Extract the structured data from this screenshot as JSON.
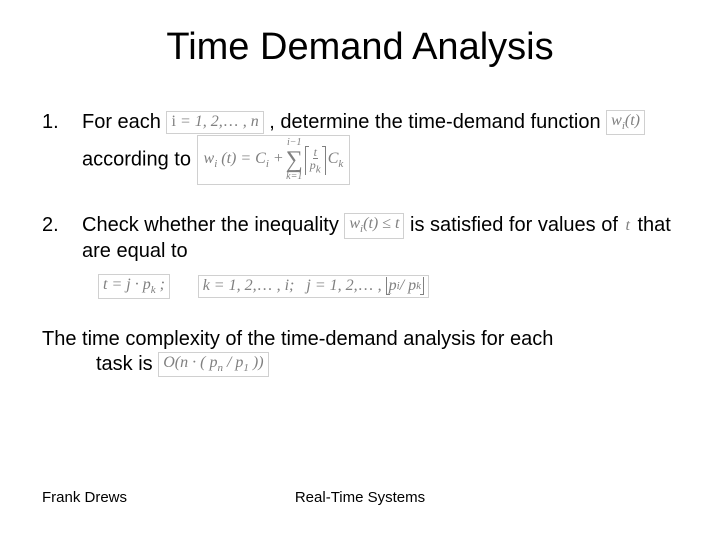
{
  "title": "Time Demand Analysis",
  "items": [
    {
      "num": "1.",
      "pre": "For each ",
      "range_tex": "i = 1, 2, … , n",
      "mid1": " , determine the time-demand function ",
      "fn_tex": "w_i(t)",
      "mid2": " according to ",
      "formula": {
        "lhs": "w_i (t) = C_i +",
        "sum_upper": "i−1",
        "sum_lower": "k=1",
        "ceil_top": "t",
        "ceil_bot": "p_k",
        "tail": "C_k"
      }
    },
    {
      "num": "2.",
      "pre": "Check whether the inequality ",
      "ineq_tex": "w_i(t) ≤ t",
      "mid1": " is satisfied for values of ",
      "tvar": "t",
      "mid2": " that are equal to",
      "eq": {
        "t_def": "t = j · p_k ;",
        "k_range": "k = 1, 2, … , i;",
        "j_range": "j = 1, 2, … ,",
        "floor": "p_i / p_k"
      }
    }
  ],
  "conclusion": {
    "line1": "The time complexity of the time-demand analysis for each",
    "line2_pre": "task is ",
    "bigO": "O(n · ( p_n / p_1 ))"
  },
  "footer": {
    "left": "Frank Drews",
    "center": "Real-Time Systems"
  },
  "style": {
    "title_fontsize": 38,
    "body_fontsize": 20,
    "footer_fontsize": 15,
    "formula_color": "#808080",
    "text_color": "#000000",
    "background_color": "#ffffff",
    "formula_border_color": "#d0d0d0",
    "font_family_body": "Arial",
    "font_family_math": "Times New Roman"
  }
}
